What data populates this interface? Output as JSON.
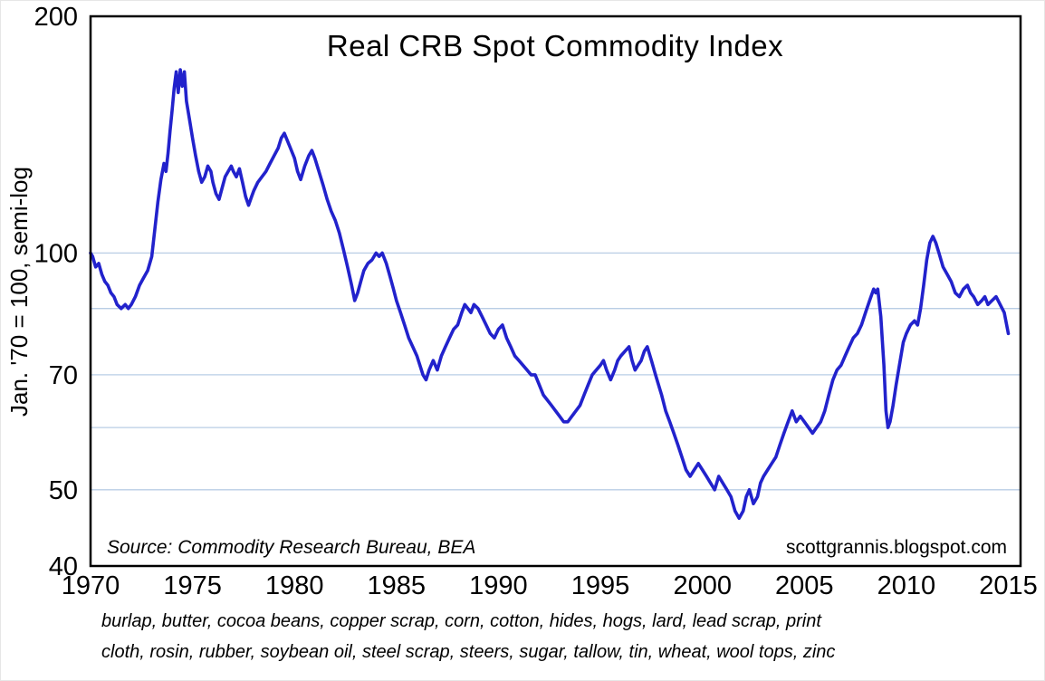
{
  "chart_data": {
    "type": "line",
    "title": "Real CRB Spot Commodity Index",
    "ylabel": "Jan. '70 = 100, semi-log",
    "xlabel": "",
    "y_scale": "log",
    "ylim": [
      40,
      200
    ],
    "xlim": [
      1970,
      2015.6
    ],
    "y_tick_labels": [
      200,
      100,
      70,
      50,
      40
    ],
    "gridlines_y": [
      100,
      85,
      70,
      60,
      50
    ],
    "x_ticks": [
      1970,
      1975,
      1980,
      1985,
      1990,
      1995,
      2000,
      2005,
      2010,
      2015
    ],
    "grid": true,
    "legend": "none",
    "colors": {
      "line": "#2222cc",
      "grid": "#b9cde5",
      "frame": "#000000",
      "text": "#000000",
      "background": "#ffffff"
    },
    "annotations": {
      "source": "Source:  Commodity Research Bureau, BEA",
      "website": "scottgrannis.blogspot.com"
    },
    "footnote_lines": [
      "burlap, butter, cocoa beans, copper scrap, corn, cotton, hides, hogs, lard, lead scrap, print",
      "cloth, rosin, rubber, soybean oil, steel scrap, steers, sugar, tallow, tin, wheat, wool tops, zinc"
    ],
    "series": [
      {
        "name": "Real CRB Spot Commodity Index",
        "color": "#2222cc",
        "points": [
          [
            1970.0,
            100
          ],
          [
            1970.1,
            99
          ],
          [
            1970.25,
            96
          ],
          [
            1970.4,
            97
          ],
          [
            1970.55,
            94
          ],
          [
            1970.7,
            92
          ],
          [
            1970.85,
            91
          ],
          [
            1971.0,
            89
          ],
          [
            1971.15,
            88
          ],
          [
            1971.3,
            86
          ],
          [
            1971.5,
            85
          ],
          [
            1971.7,
            86
          ],
          [
            1971.85,
            85
          ],
          [
            1972.0,
            86
          ],
          [
            1972.2,
            88
          ],
          [
            1972.4,
            91
          ],
          [
            1972.6,
            93
          ],
          [
            1972.8,
            95
          ],
          [
            1973.0,
            99
          ],
          [
            1973.15,
            107
          ],
          [
            1973.3,
            116
          ],
          [
            1973.45,
            124
          ],
          [
            1973.6,
            130
          ],
          [
            1973.7,
            127
          ],
          [
            1973.8,
            134
          ],
          [
            1973.9,
            143
          ],
          [
            1974.0,
            152
          ],
          [
            1974.1,
            162
          ],
          [
            1974.2,
            170
          ],
          [
            1974.3,
            160
          ],
          [
            1974.4,
            171
          ],
          [
            1974.5,
            163
          ],
          [
            1974.6,
            170
          ],
          [
            1974.7,
            156
          ],
          [
            1974.85,
            148
          ],
          [
            1975.0,
            140
          ],
          [
            1975.15,
            133
          ],
          [
            1975.3,
            127
          ],
          [
            1975.45,
            123
          ],
          [
            1975.6,
            125
          ],
          [
            1975.75,
            129
          ],
          [
            1975.9,
            127
          ],
          [
            1976.0,
            123
          ],
          [
            1976.15,
            119
          ],
          [
            1976.3,
            117
          ],
          [
            1976.45,
            121
          ],
          [
            1976.6,
            125
          ],
          [
            1976.75,
            127
          ],
          [
            1976.9,
            129
          ],
          [
            1977.0,
            127
          ],
          [
            1977.15,
            125
          ],
          [
            1977.3,
            128
          ],
          [
            1977.45,
            123
          ],
          [
            1977.6,
            118
          ],
          [
            1977.75,
            115
          ],
          [
            1977.9,
            118
          ],
          [
            1978.0,
            120
          ],
          [
            1978.2,
            123
          ],
          [
            1978.4,
            125
          ],
          [
            1978.6,
            127
          ],
          [
            1978.8,
            130
          ],
          [
            1979.0,
            133
          ],
          [
            1979.2,
            136
          ],
          [
            1979.35,
            140
          ],
          [
            1979.5,
            142
          ],
          [
            1979.65,
            139
          ],
          [
            1979.8,
            136
          ],
          [
            1980.0,
            132
          ],
          [
            1980.15,
            127
          ],
          [
            1980.3,
            124
          ],
          [
            1980.5,
            129
          ],
          [
            1980.7,
            133
          ],
          [
            1980.85,
            135
          ],
          [
            1981.0,
            132
          ],
          [
            1981.2,
            127
          ],
          [
            1981.4,
            122
          ],
          [
            1981.6,
            117
          ],
          [
            1981.8,
            113
          ],
          [
            1982.0,
            110
          ],
          [
            1982.2,
            106
          ],
          [
            1982.4,
            101
          ],
          [
            1982.6,
            96
          ],
          [
            1982.8,
            91
          ],
          [
            1982.95,
            87
          ],
          [
            1983.1,
            89
          ],
          [
            1983.25,
            92
          ],
          [
            1983.4,
            95
          ],
          [
            1983.6,
            97
          ],
          [
            1983.8,
            98
          ],
          [
            1984.0,
            100
          ],
          [
            1984.15,
            99
          ],
          [
            1984.3,
            100
          ],
          [
            1984.5,
            97
          ],
          [
            1984.7,
            93
          ],
          [
            1984.85,
            90
          ],
          [
            1985.0,
            87
          ],
          [
            1985.2,
            84
          ],
          [
            1985.4,
            81
          ],
          [
            1985.6,
            78
          ],
          [
            1985.8,
            76
          ],
          [
            1986.0,
            74
          ],
          [
            1986.15,
            72
          ],
          [
            1986.3,
            70
          ],
          [
            1986.45,
            69
          ],
          [
            1986.6,
            71
          ],
          [
            1986.8,
            73
          ],
          [
            1987.0,
            71
          ],
          [
            1987.2,
            74
          ],
          [
            1987.4,
            76
          ],
          [
            1987.6,
            78
          ],
          [
            1987.8,
            80
          ],
          [
            1988.0,
            81
          ],
          [
            1988.2,
            84
          ],
          [
            1988.35,
            86
          ],
          [
            1988.5,
            85
          ],
          [
            1988.65,
            84
          ],
          [
            1988.8,
            86
          ],
          [
            1989.0,
            85
          ],
          [
            1989.2,
            83
          ],
          [
            1989.4,
            81
          ],
          [
            1989.6,
            79
          ],
          [
            1989.8,
            78
          ],
          [
            1990.0,
            80
          ],
          [
            1990.2,
            81
          ],
          [
            1990.4,
            78
          ],
          [
            1990.6,
            76
          ],
          [
            1990.8,
            74
          ],
          [
            1991.0,
            73
          ],
          [
            1991.2,
            72
          ],
          [
            1991.4,
            71
          ],
          [
            1991.6,
            70
          ],
          [
            1991.8,
            70
          ],
          [
            1992.0,
            68
          ],
          [
            1992.2,
            66
          ],
          [
            1992.4,
            65
          ],
          [
            1992.6,
            64
          ],
          [
            1992.8,
            63
          ],
          [
            1993.0,
            62
          ],
          [
            1993.2,
            61
          ],
          [
            1993.4,
            61
          ],
          [
            1993.6,
            62
          ],
          [
            1993.8,
            63
          ],
          [
            1994.0,
            64
          ],
          [
            1994.2,
            66
          ],
          [
            1994.4,
            68
          ],
          [
            1994.6,
            70
          ],
          [
            1994.8,
            71
          ],
          [
            1995.0,
            72
          ],
          [
            1995.15,
            73
          ],
          [
            1995.3,
            71
          ],
          [
            1995.5,
            69
          ],
          [
            1995.7,
            71
          ],
          [
            1995.85,
            73
          ],
          [
            1996.0,
            74
          ],
          [
            1996.2,
            75
          ],
          [
            1996.4,
            76
          ],
          [
            1996.55,
            73
          ],
          [
            1996.7,
            71
          ],
          [
            1996.85,
            72
          ],
          [
            1997.0,
            73
          ],
          [
            1997.15,
            75
          ],
          [
            1997.3,
            76
          ],
          [
            1997.5,
            73
          ],
          [
            1997.7,
            70
          ],
          [
            1997.85,
            68
          ],
          [
            1998.0,
            66
          ],
          [
            1998.2,
            63
          ],
          [
            1998.4,
            61
          ],
          [
            1998.6,
            59
          ],
          [
            1998.8,
            57
          ],
          [
            1999.0,
            55
          ],
          [
            1999.2,
            53
          ],
          [
            1999.4,
            52
          ],
          [
            1999.6,
            53
          ],
          [
            1999.8,
            54
          ],
          [
            2000.0,
            53
          ],
          [
            2000.2,
            52
          ],
          [
            2000.4,
            51
          ],
          [
            2000.6,
            50
          ],
          [
            2000.8,
            52
          ],
          [
            2001.0,
            51
          ],
          [
            2001.2,
            50
          ],
          [
            2001.4,
            49
          ],
          [
            2001.6,
            47
          ],
          [
            2001.8,
            46
          ],
          [
            2002.0,
            47
          ],
          [
            2002.15,
            49
          ],
          [
            2002.3,
            50
          ],
          [
            2002.5,
            48
          ],
          [
            2002.7,
            49
          ],
          [
            2002.85,
            51
          ],
          [
            2003.0,
            52
          ],
          [
            2003.2,
            53
          ],
          [
            2003.4,
            54
          ],
          [
            2003.6,
            55
          ],
          [
            2003.8,
            57
          ],
          [
            2004.0,
            59
          ],
          [
            2004.2,
            61
          ],
          [
            2004.4,
            63
          ],
          [
            2004.6,
            61
          ],
          [
            2004.8,
            62
          ],
          [
            2005.0,
            61
          ],
          [
            2005.2,
            60
          ],
          [
            2005.4,
            59
          ],
          [
            2005.6,
            60
          ],
          [
            2005.8,
            61
          ],
          [
            2006.0,
            63
          ],
          [
            2006.2,
            66
          ],
          [
            2006.4,
            69
          ],
          [
            2006.6,
            71
          ],
          [
            2006.8,
            72
          ],
          [
            2007.0,
            74
          ],
          [
            2007.2,
            76
          ],
          [
            2007.4,
            78
          ],
          [
            2007.6,
            79
          ],
          [
            2007.8,
            81
          ],
          [
            2008.0,
            84
          ],
          [
            2008.2,
            87
          ],
          [
            2008.4,
            90
          ],
          [
            2008.5,
            89
          ],
          [
            2008.6,
            90
          ],
          [
            2008.75,
            83
          ],
          [
            2008.9,
            72
          ],
          [
            2009.0,
            63
          ],
          [
            2009.1,
            60
          ],
          [
            2009.2,
            61
          ],
          [
            2009.35,
            64
          ],
          [
            2009.5,
            68
          ],
          [
            2009.7,
            73
          ],
          [
            2009.85,
            77
          ],
          [
            2010.0,
            79
          ],
          [
            2010.2,
            81
          ],
          [
            2010.4,
            82
          ],
          [
            2010.55,
            81
          ],
          [
            2010.7,
            85
          ],
          [
            2010.85,
            91
          ],
          [
            2011.0,
            98
          ],
          [
            2011.15,
            103
          ],
          [
            2011.3,
            105
          ],
          [
            2011.45,
            103
          ],
          [
            2011.6,
            100
          ],
          [
            2011.8,
            96
          ],
          [
            2012.0,
            94
          ],
          [
            2012.2,
            92
          ],
          [
            2012.4,
            89
          ],
          [
            2012.6,
            88
          ],
          [
            2012.8,
            90
          ],
          [
            2013.0,
            91
          ],
          [
            2013.15,
            89
          ],
          [
            2013.3,
            88
          ],
          [
            2013.5,
            86
          ],
          [
            2013.7,
            87
          ],
          [
            2013.85,
            88
          ],
          [
            2014.0,
            86
          ],
          [
            2014.2,
            87
          ],
          [
            2014.4,
            88
          ],
          [
            2014.6,
            86
          ],
          [
            2014.8,
            84
          ],
          [
            2015.0,
            79
          ]
        ]
      }
    ]
  }
}
